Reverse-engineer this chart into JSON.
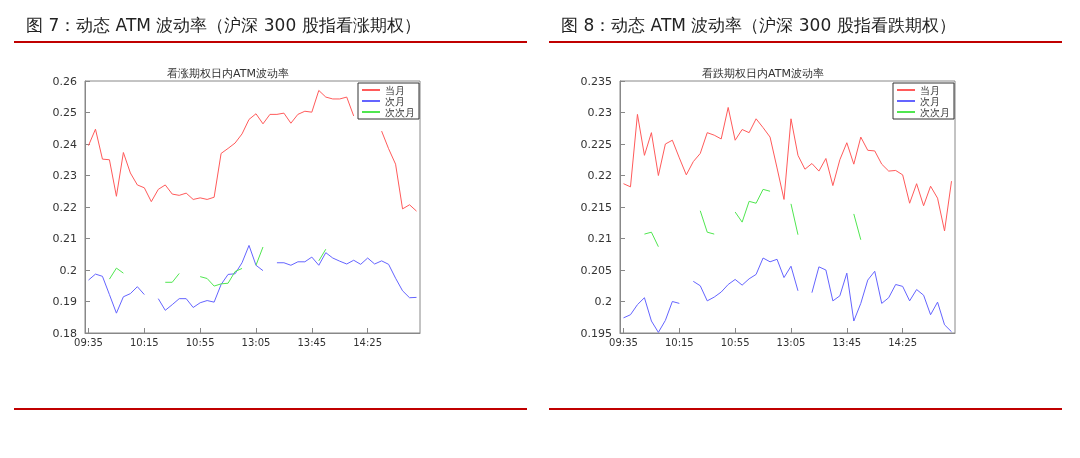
{
  "chart_data": [
    {
      "type": "line",
      "title": "图 7：动态 ATM 波动率（沪深 300 股指看涨期权）",
      "subtitle": "看涨期权日内ATM波动率",
      "categories": [
        "09:35",
        null,
        null,
        null,
        null,
        null,
        null,
        null,
        "10:15",
        null,
        null,
        null,
        null,
        null,
        null,
        null,
        "10:55",
        null,
        null,
        null,
        null,
        null,
        null,
        null,
        "13:05",
        null,
        null,
        null,
        null,
        null,
        null,
        null,
        "13:45",
        null,
        null,
        null,
        null,
        null,
        null,
        null,
        "14:25",
        null,
        null,
        null,
        null,
        null,
        null,
        null
      ],
      "series": [
        {
          "name": "当月",
          "color": "#ff5a5a",
          "values": [
            0.2395,
            0.2447,
            0.2352,
            0.235,
            0.2234,
            0.2373,
            0.2308,
            0.227,
            0.2261,
            0.2217,
            0.2256,
            0.227,
            0.2241,
            0.2237,
            0.2244,
            0.2224,
            0.2229,
            0.2224,
            0.2231,
            0.237,
            0.2386,
            0.2403,
            0.2432,
            0.2478,
            0.2496,
            0.2464,
            0.2494,
            0.2494,
            0.2498,
            0.2466,
            0.2494,
            0.2504,
            0.2501,
            0.257,
            0.2549,
            0.2543,
            0.2543,
            0.2549,
            0.2489,
            null,
            null,
            null,
            0.2441,
            0.2385,
            0.2336,
            0.2194,
            0.2207,
            0.2187
          ]
        },
        {
          "name": "次月",
          "color": "#6464ff",
          "values": [
            0.1968,
            0.1987,
            0.198,
            0.1922,
            0.1863,
            0.1915,
            0.1925,
            0.1947,
            0.1922,
            null,
            0.1909,
            0.1872,
            0.189,
            0.1909,
            0.1909,
            0.1881,
            0.1896,
            0.1903,
            0.1898,
            0.1954,
            0.1986,
            0.1988,
            0.2023,
            0.2078,
            0.2015,
            0.1998,
            null,
            0.2023,
            0.2023,
            0.2015,
            0.2026,
            0.2026,
            0.2041,
            0.2015,
            0.2055,
            0.2038,
            0.2028,
            0.2019,
            0.2031,
            0.2018,
            0.2038,
            0.2019,
            0.2029,
            0.2018,
            0.1974,
            0.1934,
            0.1912,
            0.1913
          ]
        },
        {
          "name": "次次月",
          "color": "#50e650",
          "values": [
            null,
            null,
            null,
            0.1971,
            0.2006,
            0.199,
            null,
            null,
            null,
            null,
            null,
            0.1961,
            0.1961,
            0.1989,
            null,
            null,
            0.1979,
            0.1973,
            0.1949,
            0.1956,
            0.1958,
            0.1995,
            0.2005,
            null,
            0.2015,
            0.2073,
            null,
            null,
            null,
            null,
            null,
            null,
            null,
            0.2029,
            0.2066,
            null,
            null,
            null,
            null,
            null,
            null,
            null,
            null,
            null,
            null,
            null,
            null,
            null
          ]
        }
      ],
      "ylim": [
        0.18,
        0.26
      ],
      "yticks": [
        0.18,
        0.19,
        0.2,
        0.21,
        0.22,
        0.23,
        0.24,
        0.25,
        0.26
      ],
      "legend": "top right"
    },
    {
      "type": "line",
      "title": "图 8：动态 ATM 波动率（沪深 300 股指看跌期权）",
      "subtitle": "看跌期权日内ATM波动率",
      "categories": [
        "09:35",
        null,
        null,
        null,
        null,
        null,
        null,
        null,
        "10:15",
        null,
        null,
        null,
        null,
        null,
        null,
        null,
        "10:55",
        null,
        null,
        null,
        null,
        null,
        null,
        null,
        "13:05",
        null,
        null,
        null,
        null,
        null,
        null,
        null,
        "13:45",
        null,
        null,
        null,
        null,
        null,
        null,
        null,
        "14:25",
        null,
        null,
        null,
        null,
        null,
        null,
        null
      ],
      "series": [
        {
          "name": "当月",
          "color": "#ff5a5a",
          "values": [
            0.2187,
            0.2182,
            0.2297,
            0.2232,
            0.2268,
            0.22,
            0.225,
            0.2256,
            0.2228,
            0.2201,
            0.2222,
            0.2235,
            0.2268,
            0.2264,
            0.2258,
            0.2308,
            0.2256,
            0.2273,
            0.2268,
            0.229,
            0.2276,
            0.2261,
            0.2212,
            0.2162,
            0.229,
            0.2232,
            0.221,
            0.2219,
            0.2207,
            0.2227,
            0.2184,
            0.2225,
            0.2252,
            0.2218,
            0.2261,
            0.224,
            0.2239,
            0.2218,
            0.2207,
            0.2208,
            0.2201,
            0.2156,
            0.2187,
            0.2152,
            0.2183,
            0.2164,
            0.2112,
            0.2191
          ]
        },
        {
          "name": "次月",
          "color": "#6464ff",
          "values": [
            0.1974,
            0.1979,
            0.1995,
            0.2006,
            0.1969,
            0.1951,
            0.197,
            0.2,
            0.1997,
            null,
            0.2032,
            0.2025,
            0.2001,
            0.2007,
            0.2015,
            0.2027,
            0.2035,
            0.2026,
            0.2036,
            0.2043,
            0.2069,
            0.2063,
            0.2067,
            0.2038,
            0.2056,
            0.2017,
            null,
            0.2014,
            0.2055,
            0.205,
            0.2001,
            0.2009,
            0.2045,
            0.1969,
            0.1997,
            0.2034,
            0.2048,
            0.1997,
            0.2006,
            0.2027,
            0.2024,
            0.2001,
            0.2019,
            0.201,
            0.1979,
            0.1999,
            0.1963,
            0.1952
          ]
        },
        {
          "name": "次次月",
          "color": "#50e650",
          "values": [
            null,
            null,
            null,
            0.2107,
            0.211,
            0.2087,
            null,
            null,
            null,
            null,
            null,
            0.2144,
            0.211,
            0.2107,
            null,
            null,
            0.2142,
            0.2126,
            0.2159,
            0.2156,
            0.2178,
            0.2175,
            null,
            null,
            0.2155,
            0.2106,
            null,
            null,
            null,
            null,
            null,
            null,
            null,
            0.2139,
            0.2098,
            null,
            null,
            null,
            null,
            null,
            null,
            null,
            null,
            null,
            null,
            null,
            null,
            null
          ]
        }
      ],
      "ylim": [
        0.195,
        0.235
      ],
      "yticks": [
        0.195,
        0.2,
        0.205,
        0.21,
        0.215,
        0.22,
        0.225,
        0.23,
        0.235
      ],
      "legend": "top right"
    }
  ]
}
